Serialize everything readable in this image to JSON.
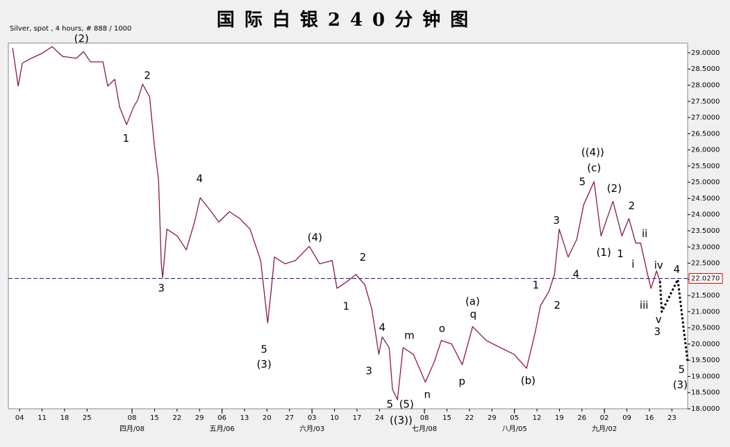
{
  "chart_data": {
    "type": "line",
    "title": "国际白银240分钟图",
    "subtitle": "Silver, spot , 4 hours, # 888 / 1000",
    "xlim": [
      -0.5,
      29.7
    ],
    "ylim": [
      18.0,
      29.3
    ],
    "yticks": [
      {
        "value": 18.0,
        "label": "18.0000"
      },
      {
        "value": 18.5,
        "label": "18.5000"
      },
      {
        "value": 19.0,
        "label": "19.0000"
      },
      {
        "value": 19.5,
        "label": "19.5000"
      },
      {
        "value": 20.0,
        "label": "20.0000"
      },
      {
        "value": 20.5,
        "label": "20.5000"
      },
      {
        "value": 21.0,
        "label": "21.0000"
      },
      {
        "value": 21.5,
        "label": "21.5000"
      },
      {
        "value": 22.0,
        "label": "22.0000"
      },
      {
        "value": 22.5,
        "label": "22.5000"
      },
      {
        "value": 23.0,
        "label": "23.0000"
      },
      {
        "value": 23.5,
        "label": "23.5000"
      },
      {
        "value": 24.0,
        "label": "24.0000"
      },
      {
        "value": 24.5,
        "label": "24.5000"
      },
      {
        "value": 25.0,
        "label": "25.0000"
      },
      {
        "value": 25.5,
        "label": "25.5000"
      },
      {
        "value": 26.0,
        "label": "26.0000"
      },
      {
        "value": 26.5,
        "label": "26.5000"
      },
      {
        "value": 27.0,
        "label": "27.0000"
      },
      {
        "value": 27.5,
        "label": "27.5000"
      },
      {
        "value": 28.0,
        "label": "28.0000"
      },
      {
        "value": 28.5,
        "label": "28.5000"
      },
      {
        "value": 29.0,
        "label": "29.0000"
      }
    ],
    "xticks": [
      {
        "value": 0,
        "label": "04"
      },
      {
        "value": 1,
        "label": "11"
      },
      {
        "value": 2,
        "label": "18"
      },
      {
        "value": 3,
        "label": "25"
      },
      {
        "value": 5,
        "label": "08"
      },
      {
        "value": 6,
        "label": "15"
      },
      {
        "value": 7,
        "label": "22"
      },
      {
        "value": 8,
        "label": "29"
      },
      {
        "value": 9,
        "label": "06"
      },
      {
        "value": 10,
        "label": "13"
      },
      {
        "value": 11,
        "label": "20"
      },
      {
        "value": 12,
        "label": "27"
      },
      {
        "value": 13,
        "label": "03"
      },
      {
        "value": 14,
        "label": "10"
      },
      {
        "value": 15,
        "label": "17"
      },
      {
        "value": 16,
        "label": "24"
      },
      {
        "value": 18,
        "label": "08"
      },
      {
        "value": 19,
        "label": "15"
      },
      {
        "value": 20,
        "label": "22"
      },
      {
        "value": 21,
        "label": "29"
      },
      {
        "value": 22,
        "label": "05"
      },
      {
        "value": 23,
        "label": "12"
      },
      {
        "value": 24,
        "label": "19"
      },
      {
        "value": 25,
        "label": "26"
      },
      {
        "value": 26,
        "label": "02"
      },
      {
        "value": 27,
        "label": "09"
      },
      {
        "value": 28,
        "label": "16"
      },
      {
        "value": 29,
        "label": "23"
      }
    ],
    "month_ticks": [
      {
        "value": 5,
        "label": "四月/08"
      },
      {
        "value": 9,
        "label": "五月/06"
      },
      {
        "value": 13,
        "label": "六月/03"
      },
      {
        "value": 18,
        "label": "七月/08"
      },
      {
        "value": 22,
        "label": "八月/05"
      },
      {
        "value": 26,
        "label": "九月/02"
      }
    ],
    "price": {
      "color": "#8b1a3a",
      "x": [
        -0.31,
        -0.06,
        0.12,
        0.52,
        0.99,
        1.45,
        1.91,
        2.53,
        2.84,
        3.15,
        3.71,
        3.92,
        4.23,
        4.45,
        4.76,
        5.06,
        5.25,
        5.47,
        5.78,
        5.99,
        6.18,
        6.3,
        6.36,
        6.55,
        7.01,
        7.41,
        7.78,
        8.03,
        8.4,
        8.86,
        9.33,
        9.79,
        10.25,
        10.72,
        11.03,
        11.18,
        11.33,
        11.8,
        12.26,
        12.88,
        13.34,
        13.9,
        14.11,
        14.58,
        14.95,
        15.35,
        15.66,
        15.97,
        16.12,
        16.43,
        16.58,
        16.8,
        17.05,
        17.51,
        18.04,
        18.44,
        18.75,
        19.21,
        19.68,
        20.14,
        20.75,
        21.37,
        21.99,
        22.54,
        22.91,
        23.16,
        23.53,
        23.78,
        23.99,
        24.39,
        24.77,
        25.08,
        25.54,
        25.85,
        26.38,
        26.78,
        27.09,
        27.39,
        27.61,
        27.92,
        28.07,
        28.32,
        28.47
      ],
      "values": [
        29.15,
        27.97,
        28.68,
        28.83,
        28.98,
        29.19,
        28.89,
        28.83,
        29.04,
        28.72,
        28.72,
        27.97,
        28.18,
        27.32,
        26.78,
        27.32,
        27.54,
        28.03,
        27.64,
        26.14,
        25.06,
        22.48,
        22.05,
        23.55,
        23.34,
        22.91,
        23.77,
        24.52,
        24.2,
        23.77,
        24.09,
        23.88,
        23.55,
        22.58,
        20.65,
        21.62,
        22.69,
        22.48,
        22.58,
        23.02,
        22.48,
        22.58,
        21.72,
        21.94,
        22.15,
        21.83,
        21.08,
        19.68,
        20.22,
        19.89,
        18.6,
        18.28,
        19.89,
        19.68,
        18.82,
        19.46,
        20.11,
        20.0,
        19.36,
        20.54,
        20.11,
        19.89,
        19.68,
        19.25,
        20.32,
        21.19,
        21.62,
        22.15,
        23.55,
        22.69,
        23.23,
        24.31,
        25.02,
        23.34,
        24.41,
        23.34,
        23.88,
        23.12,
        23.12,
        22.15,
        21.72,
        22.26,
        21.94
      ]
    },
    "projection": {
      "color": "#000000",
      "x": [
        28.47,
        28.55,
        29.26,
        29.7
      ],
      "values": [
        21.94,
        21.0,
        21.99,
        19.46
      ]
    },
    "price_line": {
      "value": 22.027,
      "label": "22.0270",
      "color": "#1a1aa0"
    },
    "annotations": [
      {
        "text": "(2)",
        "x": 2.75,
        "y": 29.43
      },
      {
        "text": "1",
        "x": 4.73,
        "y": 26.35
      },
      {
        "text": "2",
        "x": 5.68,
        "y": 28.29
      },
      {
        "text": "3",
        "x": 6.3,
        "y": 21.72
      },
      {
        "text": "4",
        "x": 8.0,
        "y": 25.1
      },
      {
        "text": "5",
        "x": 10.87,
        "y": 19.83
      },
      {
        "text": "(3)",
        "x": 10.87,
        "y": 19.36
      },
      {
        "text": "(4)",
        "x": 13.13,
        "y": 23.29
      },
      {
        "text": "1",
        "x": 14.52,
        "y": 21.16
      },
      {
        "text": "2",
        "x": 15.26,
        "y": 22.67
      },
      {
        "text": "3",
        "x": 15.53,
        "y": 19.16
      },
      {
        "text": "4",
        "x": 16.12,
        "y": 20.5
      },
      {
        "text": "5",
        "x": 16.46,
        "y": 18.13
      },
      {
        "text": "(5)",
        "x": 17.2,
        "y": 18.13
      },
      {
        "text": "((3))",
        "x": 16.96,
        "y": 17.63
      },
      {
        "text": "m",
        "x": 17.33,
        "y": 20.26
      },
      {
        "text": "n",
        "x": 18.13,
        "y": 18.43
      },
      {
        "text": "o",
        "x": 18.78,
        "y": 20.47
      },
      {
        "text": "p",
        "x": 19.67,
        "y": 18.84
      },
      {
        "text": "(a)",
        "x": 20.14,
        "y": 21.31
      },
      {
        "text": "q",
        "x": 20.17,
        "y": 20.91
      },
      {
        "text": "(b)",
        "x": 22.61,
        "y": 18.86
      },
      {
        "text": "1",
        "x": 22.95,
        "y": 21.81
      },
      {
        "text": "2",
        "x": 23.9,
        "y": 21.19
      },
      {
        "text": "3",
        "x": 23.87,
        "y": 23.81
      },
      {
        "text": "4",
        "x": 24.74,
        "y": 22.15
      },
      {
        "text": "5",
        "x": 25.02,
        "y": 25.0
      },
      {
        "text": "((4))",
        "x": 25.48,
        "y": 25.92
      },
      {
        "text": "(c)",
        "x": 25.54,
        "y": 25.43
      },
      {
        "text": "(2)",
        "x": 26.44,
        "y": 24.8
      },
      {
        "text": "(1)",
        "x": 25.97,
        "y": 22.82
      },
      {
        "text": "1",
        "x": 26.71,
        "y": 22.78
      },
      {
        "text": "2",
        "x": 27.21,
        "y": 24.26
      },
      {
        "text": "ii",
        "x": 27.79,
        "y": 23.4
      },
      {
        "text": "i",
        "x": 27.27,
        "y": 22.46
      },
      {
        "text": "iii",
        "x": 27.76,
        "y": 21.19
      },
      {
        "text": "iv",
        "x": 28.41,
        "y": 22.43
      },
      {
        "text": "4",
        "x": 29.22,
        "y": 22.3
      },
      {
        "text": "v",
        "x": 28.41,
        "y": 20.75
      },
      {
        "text": "3",
        "x": 28.35,
        "y": 20.37
      },
      {
        "text": "5",
        "x": 29.43,
        "y": 19.2
      },
      {
        "text": "(3)",
        "x": 29.37,
        "y": 18.73
      }
    ]
  }
}
